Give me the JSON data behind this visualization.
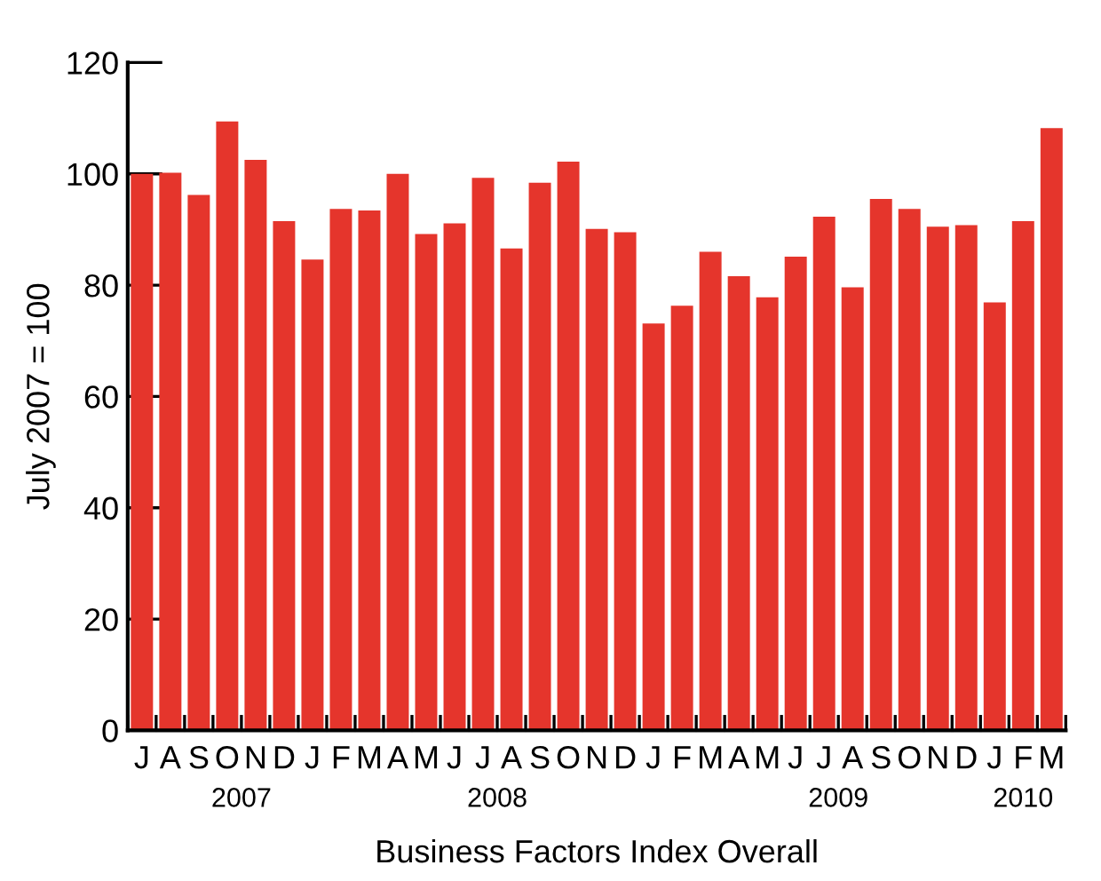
{
  "chart_data": {
    "type": "bar",
    "xlabel": "Business Factors Index Overall",
    "ylabel": "July 2007 = 100",
    "categories": [
      "J",
      "A",
      "S",
      "O",
      "N",
      "D",
      "J",
      "F",
      "M",
      "A",
      "M",
      "J",
      "J",
      "A",
      "S",
      "O",
      "N",
      "D",
      "J",
      "F",
      "M",
      "A",
      "M",
      "J",
      "J",
      "A",
      "S",
      "O",
      "N",
      "D",
      "J",
      "F",
      "M"
    ],
    "values": [
      100,
      100.2,
      96.2,
      109.4,
      102.5,
      91.5,
      84.6,
      93.7,
      93.4,
      100,
      89.2,
      91.1,
      99.3,
      86.6,
      98.4,
      102.2,
      90.1,
      89.5,
      73.1,
      76.3,
      86,
      81.6,
      77.8,
      85.1,
      92.3,
      79.6,
      95.5,
      93.7,
      90.5,
      90.8,
      76.9,
      91.5,
      108.2
    ],
    "color": "#e5352c",
    "ylim": [
      0,
      120
    ],
    "yticks": [
      0,
      20,
      40,
      60,
      80,
      100,
      120
    ],
    "grid": false,
    "annotations": [
      "2007",
      "2008",
      "2009",
      "2010"
    ]
  }
}
